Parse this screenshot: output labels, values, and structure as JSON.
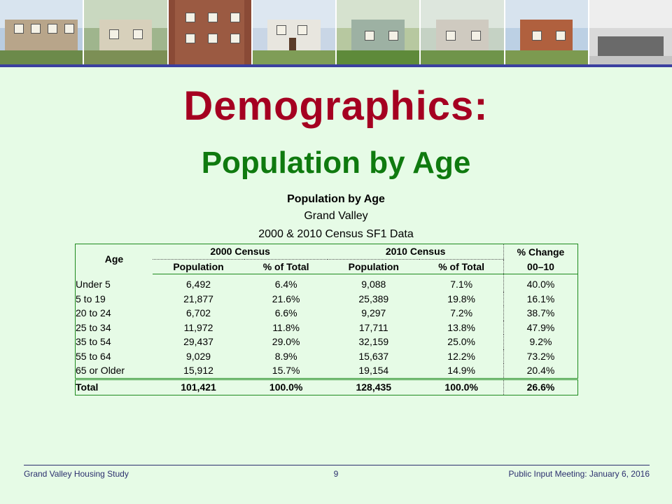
{
  "slide": {
    "title": "Demographics:",
    "subtitle": "Population by Age",
    "colors": {
      "title": "#a50021",
      "subtitle": "#0f7a0f",
      "background": "#e6fbe6",
      "table_border": "#1e8a1e",
      "rule": "#3b3fa0"
    }
  },
  "photo_strip": {
    "photos": [
      {
        "name": "townhouse-row-photo"
      },
      {
        "name": "wooden-house-photo"
      },
      {
        "name": "brick-apartment-photo"
      },
      {
        "name": "two-story-house-photo"
      },
      {
        "name": "small-house-photo"
      },
      {
        "name": "awning-house-photo"
      },
      {
        "name": "brick-bungalow-photo"
      },
      {
        "name": "bw-street-photo"
      }
    ]
  },
  "table": {
    "title": "Population by Age",
    "place": "Grand Valley",
    "source": "2000 & 2010 Census SF1 Data",
    "headers": {
      "age": "Age",
      "census_2000": "2000 Census",
      "census_2010": "2010 Census",
      "change_line1": "% Change",
      "change_line2": "00–10",
      "population": "Population",
      "pct_total": "% of Total"
    },
    "rows": [
      {
        "age": "Under 5",
        "pop2000": "6,492",
        "pct2000": "6.4%",
        "pop2010": "9,088",
        "pct2010": "7.1%",
        "change": "40.0%"
      },
      {
        "age": "5 to 19",
        "pop2000": "21,877",
        "pct2000": "21.6%",
        "pop2010": "25,389",
        "pct2010": "19.8%",
        "change": "16.1%"
      },
      {
        "age": "20 to 24",
        "pop2000": "6,702",
        "pct2000": "6.6%",
        "pop2010": "9,297",
        "pct2010": "7.2%",
        "change": "38.7%"
      },
      {
        "age": "25 to 34",
        "pop2000": "11,972",
        "pct2000": "11.8%",
        "pop2010": "17,711",
        "pct2010": "13.8%",
        "change": "47.9%"
      },
      {
        "age": "35 to 54",
        "pop2000": "29,437",
        "pct2000": "29.0%",
        "pop2010": "32,159",
        "pct2010": "25.0%",
        "change": "9.2%"
      },
      {
        "age": "55 to 64",
        "pop2000": "9,029",
        "pct2000": "8.9%",
        "pop2010": "15,637",
        "pct2010": "12.2%",
        "change": "73.2%"
      },
      {
        "age": "65 or Older",
        "pop2000": "15,912",
        "pct2000": "15.7%",
        "pop2010": "19,154",
        "pct2010": "14.9%",
        "change": "20.4%"
      }
    ],
    "total": {
      "age": "Total",
      "pop2000": "101,421",
      "pct2000": "100.0%",
      "pop2010": "128,435",
      "pct2010": "100.0%",
      "change": "26.6%"
    }
  },
  "footer": {
    "left": "Grand Valley Housing Study",
    "page": "9",
    "right": "Public Input Meeting: January 6, 2016"
  }
}
